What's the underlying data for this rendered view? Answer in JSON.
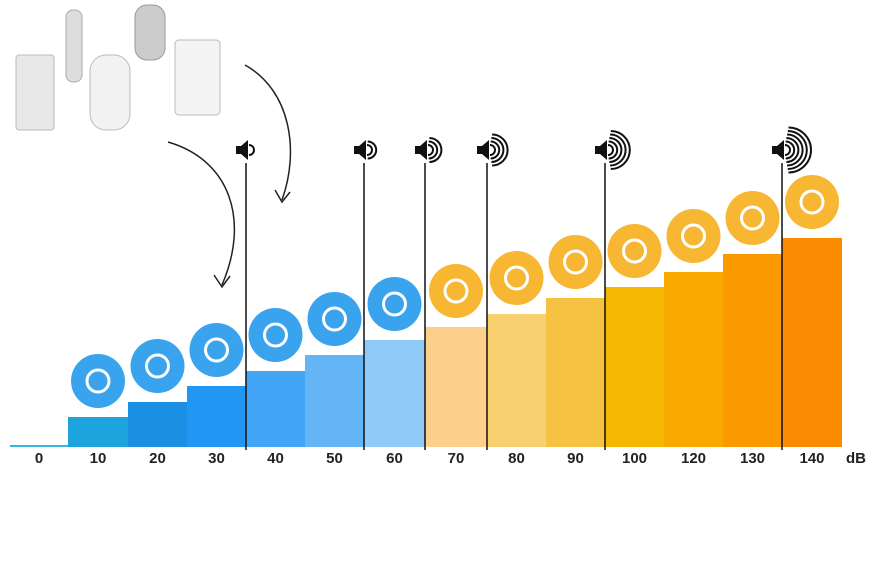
{
  "chart_data": {
    "type": "bar",
    "values": [
      0,
      10,
      20,
      30,
      40,
      50,
      60,
      70,
      80,
      90,
      100,
      120,
      130,
      140
    ],
    "unit": "dB",
    "colors": [
      "#33b5e5",
      "#1fa3dd",
      "#1a8fe3",
      "#2196f3",
      "#42a5f5",
      "#64b5f6",
      "#90caf9",
      "#fcd08a",
      "#f9d070",
      "#f5c242",
      "#f5b800",
      "#f9a800",
      "#fa9a00",
      "#f98c00"
    ]
  }
}
